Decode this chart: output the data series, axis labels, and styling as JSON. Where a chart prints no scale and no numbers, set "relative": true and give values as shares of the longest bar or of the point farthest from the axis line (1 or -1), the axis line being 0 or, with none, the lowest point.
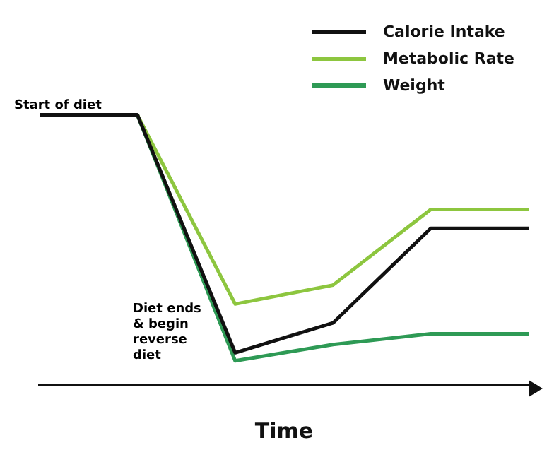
{
  "chart_data": {
    "type": "line",
    "relative": true,
    "xlabel": "Time",
    "categories": [
      null,
      null,
      null,
      null,
      null,
      null
    ],
    "series": [
      {
        "name": "Calorie Intake",
        "color": "#111111",
        "values": [
          1,
          1,
          0.12,
          0.23,
          0.58,
          0.58
        ]
      },
      {
        "name": "Metabolic Rate",
        "color": "#8dc63f",
        "values": [
          null,
          1,
          0.3,
          0.37,
          0.65,
          0.65
        ]
      },
      {
        "name": "Weight",
        "color": "#2e9a55",
        "values": [
          null,
          1,
          0.09,
          0.15,
          0.19,
          0.19
        ]
      }
    ],
    "legend": "top right",
    "marker": "none",
    "line_style": "solid",
    "grid": false,
    "annotations": [
      "Start of diet",
      "Diet ends & begin reverse diet"
    ]
  }
}
